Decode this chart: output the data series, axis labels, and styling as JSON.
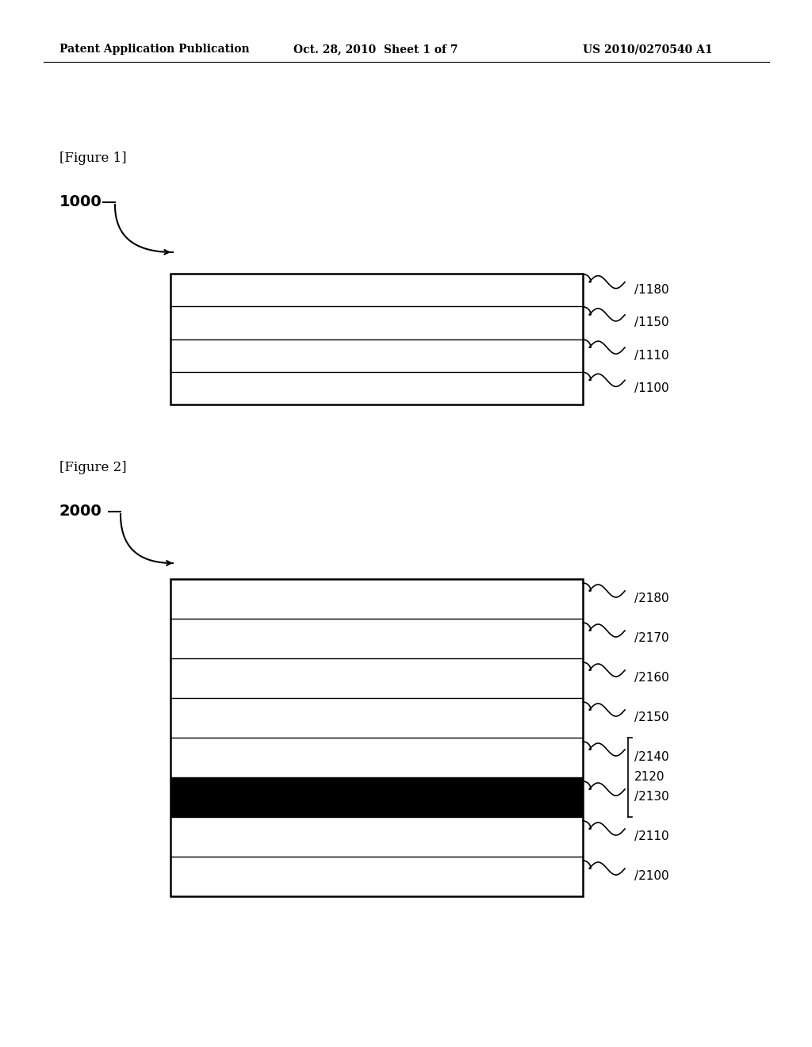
{
  "bg_color": "#ffffff",
  "header_left": "Patent Application Publication",
  "header_mid": "Oct. 28, 2010  Sheet 1 of 7",
  "header_right": "US 2010/0270540 A1",
  "fig1_label": "[Figure 1]",
  "fig1_ref_label": "1000",
  "fig1_layers": [
    {
      "fill": "white",
      "label": "1180"
    },
    {
      "fill": "white",
      "label": "1150"
    },
    {
      "fill": "white",
      "label": "1110"
    },
    {
      "fill": "white",
      "label": "1100"
    }
  ],
  "fig2_label": "[Figure 2]",
  "fig2_ref_label": "2000",
  "fig2_layers": [
    {
      "fill": "white",
      "label": "2180"
    },
    {
      "fill": "white",
      "label": "2170"
    },
    {
      "fill": "white",
      "label": "2160"
    },
    {
      "fill": "white",
      "label": "2150"
    },
    {
      "fill": "white",
      "label": "2140"
    },
    {
      "fill": "black",
      "label": "2130"
    },
    {
      "fill": "white",
      "label": "2110"
    },
    {
      "fill": "white",
      "label": "2100"
    }
  ],
  "fig2_brace_label": "2120",
  "fig2_brace_layers": [
    "2140",
    "2130"
  ]
}
